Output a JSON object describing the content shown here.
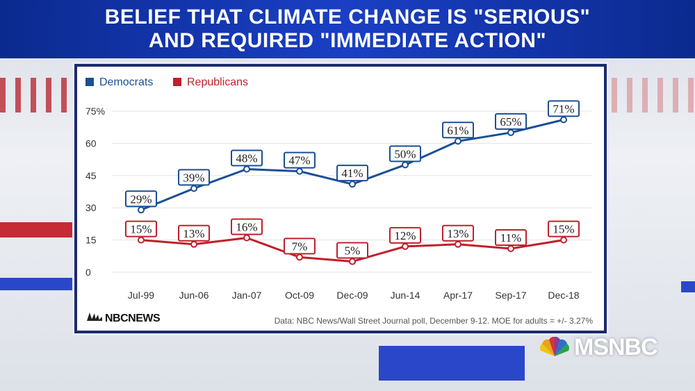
{
  "title": {
    "line1": "BELIEF THAT CLIMATE CHANGE IS \"SERIOUS\"",
    "line2": "AND REQUIRED \"IMMEDIATE ACTION\""
  },
  "brand": {
    "nbc_news": "NBCNEWS",
    "network": "MSNBC"
  },
  "colors": {
    "democrats": "#1a4f95",
    "republicans": "#c0202b",
    "banner": "#1a3fc4"
  },
  "chart_data": {
    "type": "line",
    "categories": [
      "Jul-99",
      "Jun-06",
      "Jan-07",
      "Oct-09",
      "Dec-09",
      "Jun-14",
      "Apr-17",
      "Sep-17",
      "Dec-18"
    ],
    "series": [
      {
        "name": "Democrats",
        "values": [
          29,
          39,
          48,
          47,
          41,
          50,
          61,
          65,
          71
        ],
        "labels": [
          "29%",
          "39%",
          "48%",
          "47%",
          "41%",
          "50%",
          "61%",
          "65%",
          "71%"
        ]
      },
      {
        "name": "Republicans",
        "values": [
          15,
          13,
          16,
          7,
          5,
          12,
          13,
          11,
          15
        ],
        "labels": [
          "15%",
          "13%",
          "16%",
          "7%",
          "5%",
          "12%",
          "13%",
          "11%",
          "15%"
        ]
      }
    ],
    "yticks": [
      "0",
      "15",
      "30",
      "45",
      "60",
      "75%"
    ],
    "ytick_values": [
      0,
      15,
      30,
      45,
      60,
      75
    ],
    "ylim": [
      0,
      75
    ],
    "legend_position": "top-left",
    "grid": true,
    "source": "Data: NBC News/Wall Street Journal poll, December 9-12. MOE for adults = +/- 3.27%"
  }
}
